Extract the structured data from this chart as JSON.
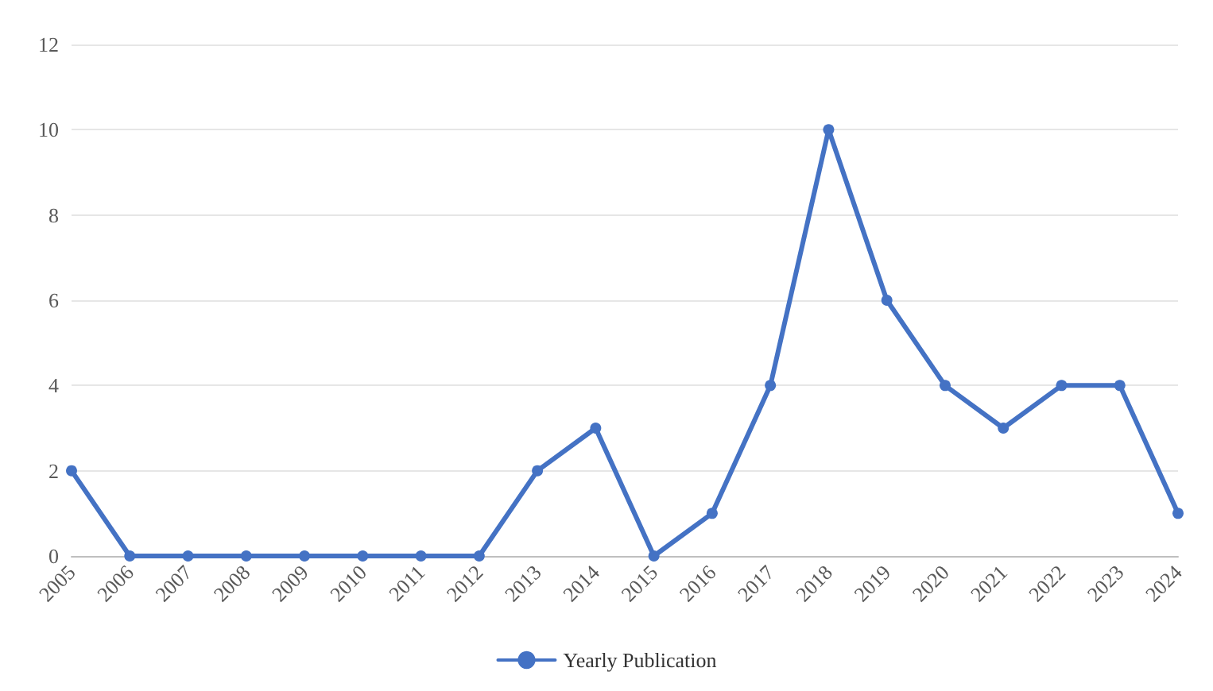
{
  "chart_data": {
    "type": "line",
    "categories": [
      "2005",
      "2006",
      "2007",
      "2008",
      "2009",
      "2010",
      "2011",
      "2012",
      "2013",
      "2014",
      "2015",
      "2016",
      "2017",
      "2018",
      "2019",
      "2020",
      "2021",
      "2022",
      "2023",
      "2024"
    ],
    "series": [
      {
        "name": "Yearly Publication",
        "color": "#4472c4",
        "values": [
          2,
          0,
          0,
          0,
          0,
          0,
          0,
          0,
          2,
          3,
          0,
          1,
          4,
          10,
          6,
          4,
          3,
          4,
          4,
          1
        ]
      }
    ],
    "ylim": [
      0,
      12
    ],
    "yticks": [
      0,
      2,
      4,
      6,
      8,
      10,
      12
    ],
    "grid": "y",
    "legend": "bottom",
    "marker": "circle",
    "line_style": "solid"
  }
}
